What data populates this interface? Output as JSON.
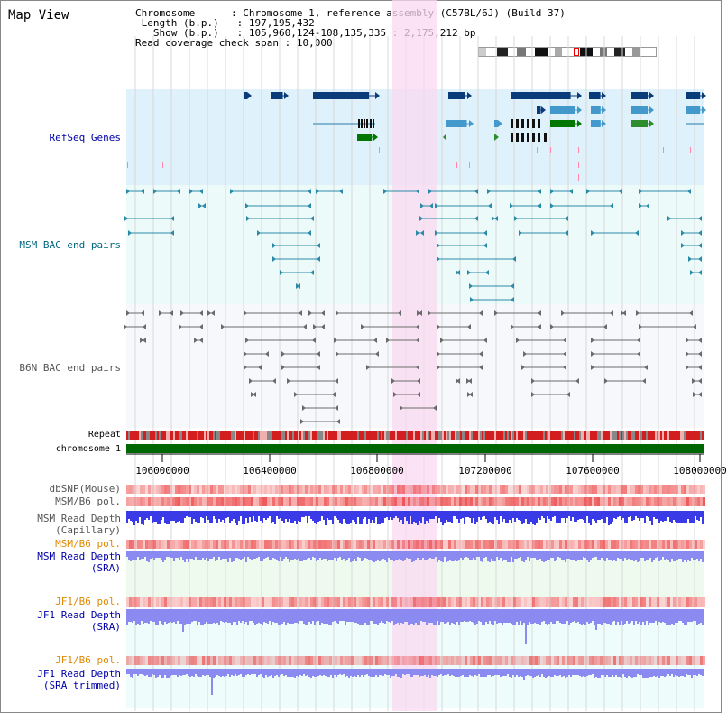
{
  "title": "Map View",
  "info": {
    "chromosome_label": "Chromosome",
    "chromosome_value": "Chromosome 1, reference assembly (C57BL/6J) (Build 37)",
    "length_label": "Length (b.p.)",
    "length_value": "197,195,432",
    "show_label": "Show (b.p.)",
    "show_value": "105,960,124-108,135,335 : 2,175,212 bp",
    "coverage_label": "Read coverage check span",
    "coverage_value": "10,000"
  },
  "tracks": {
    "refseq": "RefSeq Genes",
    "msm_bac": "MSM BAC end pairs",
    "b6n_bac": "B6N BAC end pairs",
    "repeat": "Repeat",
    "chromosome": "chromosome 1",
    "dbsnp": "dbSNP(Mouse)",
    "msm_b6_pol": "MSM/B6 pol.",
    "msm_read_depth_cap": "MSM Read Depth\n(Capillary)",
    "msm_b6_pol_2": "MSM/B6 pol.",
    "msm_read_depth_sra": "MSM Read Depth\n(SRA)",
    "jf1_b6_pol": "JF1/B6 pol.",
    "jf1_read_depth_sra": "JF1 Read Depth\n(SRA)",
    "jf1_b6_pol_2": "JF1/B6 pol.",
    "jf1_read_depth_trimmed": "JF1 Read Depth\n(SRA trimmed)"
  },
  "axis_ticks": [
    "106000000",
    "106400000",
    "106800000",
    "107200000",
    "107600000",
    "108000000"
  ],
  "colors": {
    "refseq_bg": "#dff1fb",
    "bac_bg": "#edfafa",
    "b6n_bg": "#f6f8fb",
    "highlight": "#f9d9f2",
    "chromosome": "#006600",
    "depth_blue": "#3a3ae6",
    "depth_light": "#8a8af0",
    "pol_red": "#f28080"
  }
}
